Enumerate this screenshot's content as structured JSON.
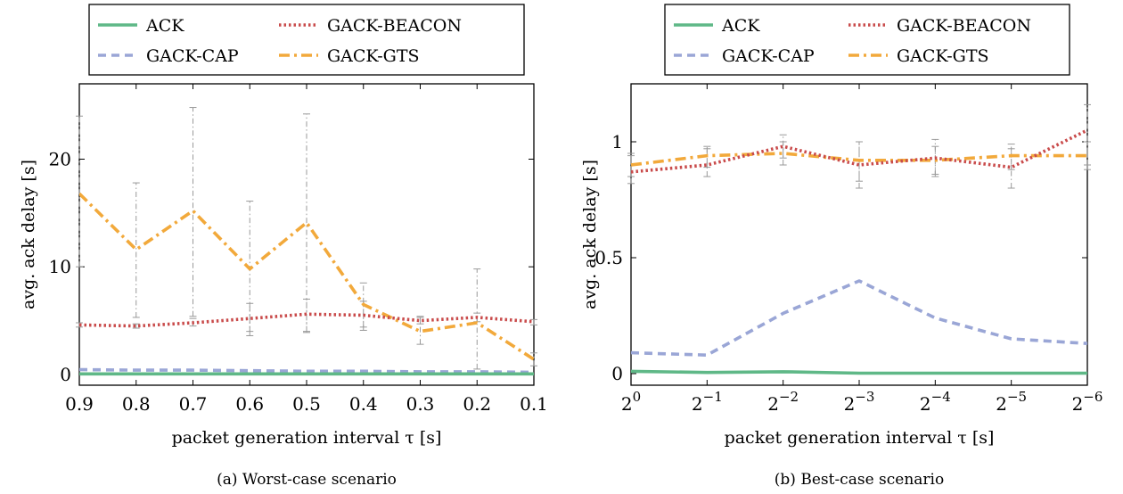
{
  "colors": {
    "ACK": "#5fb887",
    "GACK-BEACON": "#c94b4b",
    "GACK-CAP": "#9aa6d6",
    "GACK-GTS": "#f2a93b",
    "errorbar": "#999999"
  },
  "chart_data": [
    {
      "type": "line",
      "caption": "(a) Worst-case scenario",
      "xlabel": "packet generation interval τ [s]",
      "ylabel": "avg. ack delay [s]",
      "x": [
        0.9,
        0.8,
        0.7,
        0.6,
        0.5,
        0.4,
        0.3,
        0.2,
        0.1
      ],
      "xticks": [
        "0.9",
        "0.8",
        "0.7",
        "0.6",
        "0.5",
        "0.4",
        "0.3",
        "0.2",
        "0.1"
      ],
      "xlim": [
        0.9,
        0.1
      ],
      "ylim": [
        -1,
        27
      ],
      "yticks": [
        0,
        10,
        20
      ],
      "ytick_labels": [
        "0",
        "10",
        "20"
      ],
      "legend": [
        "ACK",
        "GACK-BEACON",
        "GACK-CAP",
        "GACK-GTS"
      ],
      "series": [
        {
          "name": "ACK",
          "style": "solid",
          "values": [
            0.05,
            0.05,
            0.05,
            0.05,
            0.05,
            0.05,
            0.05,
            0.05,
            0.05
          ]
        },
        {
          "name": "GACK-BEACON",
          "style": "dotted",
          "values": [
            4.6,
            4.5,
            4.8,
            5.2,
            5.6,
            5.5,
            5.0,
            5.3,
            4.9
          ],
          "err_low": [
            4.4,
            4.3,
            4.5,
            3.6,
            3.9,
            4.1,
            4.7,
            4.9,
            4.6
          ],
          "err_high": [
            4.8,
            4.7,
            5.2,
            6.6,
            7.0,
            6.8,
            5.4,
            5.7,
            5.1
          ]
        },
        {
          "name": "GACK-CAP",
          "style": "dashed",
          "values": [
            0.45,
            0.4,
            0.4,
            0.35,
            0.3,
            0.3,
            0.25,
            0.25,
            0.2
          ]
        },
        {
          "name": "GACK-GTS",
          "style": "dashdot",
          "values": [
            16.8,
            11.6,
            15.2,
            9.8,
            14.1,
            6.5,
            4.0,
            4.8,
            1.4
          ],
          "err_low": [
            10.0,
            5.3,
            5.4,
            4.0,
            4.0,
            4.4,
            2.8,
            0.5,
            0.8
          ],
          "err_high": [
            24.0,
            17.8,
            24.8,
            16.1,
            24.2,
            8.5,
            5.3,
            9.8,
            2.0
          ]
        }
      ]
    },
    {
      "type": "line",
      "caption": "(b) Best-case scenario",
      "xlabel": "packet generation interval τ [s]",
      "ylabel": "avg. ack delay [s]",
      "x": [
        0,
        -1,
        -2,
        -3,
        -4,
        -5,
        -6
      ],
      "x_base": "2",
      "x_exponents": [
        "0",
        "−1",
        "−2",
        "−3",
        "−4",
        "−5",
        "−6"
      ],
      "xlim": [
        0,
        -6
      ],
      "ylim": [
        -0.05,
        1.25
      ],
      "yticks": [
        0,
        0.5,
        1
      ],
      "ytick_labels": [
        "0",
        "0.5",
        "1"
      ],
      "legend": [
        "ACK",
        "GACK-BEACON",
        "GACK-CAP",
        "GACK-GTS"
      ],
      "series": [
        {
          "name": "ACK",
          "style": "solid",
          "values": [
            0.01,
            0.005,
            0.008,
            0.002,
            0.002,
            0.002,
            0.002
          ]
        },
        {
          "name": "GACK-BEACON",
          "style": "dotted",
          "values": [
            0.87,
            0.9,
            0.98,
            0.9,
            0.93,
            0.89,
            1.05
          ],
          "err_low": [
            0.82,
            0.85,
            0.93,
            0.8,
            0.85,
            0.8,
            0.9
          ],
          "err_high": [
            0.94,
            0.98,
            1.03,
            1.0,
            1.01,
            0.99,
            1.16
          ]
        },
        {
          "name": "GACK-CAP",
          "style": "dashed",
          "values": [
            0.09,
            0.08,
            0.26,
            0.4,
            0.24,
            0.15,
            0.13
          ]
        },
        {
          "name": "GACK-GTS",
          "style": "dashdot",
          "values": [
            0.9,
            0.94,
            0.95,
            0.92,
            0.92,
            0.94,
            0.94
          ],
          "err_low": [
            0.85,
            0.89,
            0.9,
            0.83,
            0.86,
            0.88,
            0.88
          ],
          "err_high": [
            0.95,
            0.97,
            1.0,
            1.0,
            0.98,
            0.97,
            1.0
          ]
        }
      ]
    }
  ]
}
